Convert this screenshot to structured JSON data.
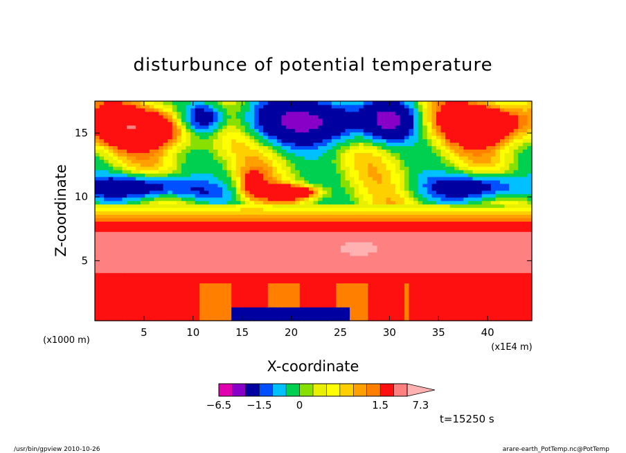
{
  "chart_data": {
    "type": "heatmap",
    "title": "disturbunce of potential temperature",
    "xlabel": "X-coordinate",
    "ylabel": "Z-coordinate",
    "x_unit": "(x1E4 m)",
    "y_unit": "(x1000 m)",
    "xlim": [
      0,
      44.5
    ],
    "ylim": [
      0.3,
      17.5
    ],
    "x_ticks": [
      {
        "value": 5,
        "label": "5"
      },
      {
        "value": 10,
        "label": "10"
      },
      {
        "value": 15,
        "label": "15"
      },
      {
        "value": 20,
        "label": "20"
      },
      {
        "value": 25,
        "label": "25"
      },
      {
        "value": 30,
        "label": "30"
      },
      {
        "value": 35,
        "label": "35"
      },
      {
        "value": 40,
        "label": "40"
      }
    ],
    "y_ticks": [
      {
        "value": 5,
        "label": "5"
      },
      {
        "value": 10,
        "label": "10"
      },
      {
        "value": 15,
        "label": "15"
      }
    ],
    "colorbar": {
      "levels": [
        -6.5,
        -5.0,
        -3.5,
        -1.5,
        -1.0,
        -0.5,
        0,
        0.25,
        0.5,
        0.75,
        1.0,
        1.25,
        1.5,
        3.5,
        5.0,
        7.3
      ],
      "colors": [
        "#e000b0",
        "#8800c8",
        "#0000a0",
        "#0050ff",
        "#00c0ff",
        "#00d050",
        "#88e000",
        "#e8f000",
        "#ffff00",
        "#ffd000",
        "#ffa000",
        "#ff8000",
        "#ff1010",
        "#ff8080",
        "#ffb0b0"
      ],
      "labels": [
        {
          "value": -6.5,
          "label": "−6.5"
        },
        {
          "value": -1.5,
          "label": "−1.5"
        },
        {
          "value": 0,
          "label": "0"
        },
        {
          "value": 1.5,
          "label": "1.5"
        },
        {
          "value": 7.3,
          "label": "7.3"
        }
      ]
    }
  },
  "annotations": {
    "time": "t=15250 s",
    "footer_left": "/usr/bin/gpview   2010-10-26",
    "footer_right": "arare-earth_PotTemp.nc@PotTemp"
  }
}
